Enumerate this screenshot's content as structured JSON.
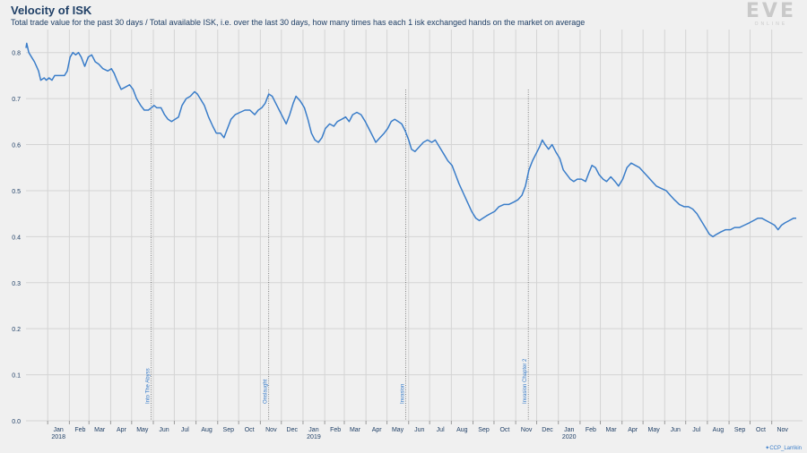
{
  "header": {
    "title": "Velocity of ISK",
    "subtitle": "Total trade value for the past 30 days / Total available ISK, i.e. over the last 30 days, how many times has each 1 isk exchanged hands on the market on average"
  },
  "logo": {
    "main": "EVE",
    "sub": "ONLINE"
  },
  "credit": "CCP_Larrikin",
  "colors": {
    "line": "#3a7dc9",
    "grid": "#d4d4d4",
    "text": "#1f3f66",
    "background": "#f0f0f0",
    "event": "#555555"
  },
  "chart_data": {
    "type": "line",
    "title": "Velocity of ISK",
    "xlabel": "",
    "ylabel": "",
    "ylim": [
      0,
      0.85
    ],
    "xlim": [
      "2017-12-01",
      "2020-12-15"
    ],
    "grid": true,
    "y_ticks": [
      "0.0",
      "0.1",
      "0.2",
      "0.3",
      "0.4",
      "0.5",
      "0.6",
      "0.7",
      "0.8"
    ],
    "x_ticks": [
      {
        "date": "2018-01-01",
        "label": "Jan",
        "year": "2018"
      },
      {
        "date": "2018-02-01",
        "label": "Feb"
      },
      {
        "date": "2018-03-01",
        "label": "Mar"
      },
      {
        "date": "2018-04-01",
        "label": "Apr"
      },
      {
        "date": "2018-05-01",
        "label": "May"
      },
      {
        "date": "2018-06-01",
        "label": "Jun"
      },
      {
        "date": "2018-07-01",
        "label": "Jul"
      },
      {
        "date": "2018-08-01",
        "label": "Aug"
      },
      {
        "date": "2018-09-01",
        "label": "Sep"
      },
      {
        "date": "2018-10-01",
        "label": "Oct"
      },
      {
        "date": "2018-11-01",
        "label": "Nov"
      },
      {
        "date": "2018-12-01",
        "label": "Dec"
      },
      {
        "date": "2019-01-01",
        "label": "Jan",
        "year": "2019"
      },
      {
        "date": "2019-02-01",
        "label": "Feb"
      },
      {
        "date": "2019-03-01",
        "label": "Mar"
      },
      {
        "date": "2019-04-01",
        "label": "Apr"
      },
      {
        "date": "2019-05-01",
        "label": "May"
      },
      {
        "date": "2019-06-01",
        "label": "Jun"
      },
      {
        "date": "2019-07-01",
        "label": "Jul"
      },
      {
        "date": "2019-08-01",
        "label": "Aug"
      },
      {
        "date": "2019-09-01",
        "label": "Sep"
      },
      {
        "date": "2019-10-01",
        "label": "Oct"
      },
      {
        "date": "2019-11-01",
        "label": "Nov"
      },
      {
        "date": "2019-12-01",
        "label": "Dec"
      },
      {
        "date": "2020-01-01",
        "label": "Jan",
        "year": "2020"
      },
      {
        "date": "2020-02-01",
        "label": "Feb"
      },
      {
        "date": "2020-03-01",
        "label": "Mar"
      },
      {
        "date": "2020-04-01",
        "label": "Apr"
      },
      {
        "date": "2020-05-01",
        "label": "May"
      },
      {
        "date": "2020-06-01",
        "label": "Jun"
      },
      {
        "date": "2020-07-01",
        "label": "Jul"
      },
      {
        "date": "2020-08-01",
        "label": "Aug"
      },
      {
        "date": "2020-09-01",
        "label": "Sep"
      },
      {
        "date": "2020-10-01",
        "label": "Oct"
      },
      {
        "date": "2020-11-01",
        "label": "Nov"
      }
    ],
    "events": [
      {
        "date": "2018-05-29",
        "label": "Into The Abyss"
      },
      {
        "date": "2018-11-13",
        "label": "Onslaught"
      },
      {
        "date": "2019-05-28",
        "label": "Invasion"
      },
      {
        "date": "2019-11-19",
        "label": "Invasion Chapter 2"
      }
    ],
    "series": [
      {
        "values": [
          [
            "2017-12-01",
            0.81
          ],
          [
            "2017-12-02",
            0.82
          ],
          [
            "2017-12-05",
            0.8
          ],
          [
            "2017-12-09",
            0.79
          ],
          [
            "2017-12-13",
            0.78
          ],
          [
            "2017-12-16",
            0.77
          ],
          [
            "2017-12-19",
            0.76
          ],
          [
            "2017-12-22",
            0.74
          ],
          [
            "2017-12-27",
            0.745
          ],
          [
            "2017-12-30",
            0.74
          ],
          [
            "2018-01-03",
            0.745
          ],
          [
            "2018-01-07",
            0.74
          ],
          [
            "2018-01-11",
            0.75
          ],
          [
            "2018-01-18",
            0.75
          ],
          [
            "2018-01-25",
            0.75
          ],
          [
            "2018-01-29",
            0.76
          ],
          [
            "2018-02-02",
            0.79
          ],
          [
            "2018-02-06",
            0.8
          ],
          [
            "2018-02-10",
            0.795
          ],
          [
            "2018-02-14",
            0.8
          ],
          [
            "2018-02-18",
            0.79
          ],
          [
            "2018-02-23",
            0.77
          ],
          [
            "2018-02-28",
            0.79
          ],
          [
            "2018-03-05",
            0.795
          ],
          [
            "2018-03-10",
            0.78
          ],
          [
            "2018-03-15",
            0.775
          ],
          [
            "2018-03-21",
            0.765
          ],
          [
            "2018-03-28",
            0.76
          ],
          [
            "2018-04-02",
            0.765
          ],
          [
            "2018-04-06",
            0.755
          ],
          [
            "2018-04-10",
            0.74
          ],
          [
            "2018-04-16",
            0.72
          ],
          [
            "2018-04-22",
            0.725
          ],
          [
            "2018-04-28",
            0.73
          ],
          [
            "2018-05-03",
            0.72
          ],
          [
            "2018-05-08",
            0.7
          ],
          [
            "2018-05-14",
            0.685
          ],
          [
            "2018-05-19",
            0.675
          ],
          [
            "2018-05-25",
            0.675
          ],
          [
            "2018-05-29",
            0.68
          ],
          [
            "2018-06-02",
            0.685
          ],
          [
            "2018-06-06",
            0.68
          ],
          [
            "2018-06-12",
            0.68
          ],
          [
            "2018-06-17",
            0.665
          ],
          [
            "2018-06-22",
            0.655
          ],
          [
            "2018-06-27",
            0.65
          ],
          [
            "2018-07-02",
            0.655
          ],
          [
            "2018-07-07",
            0.66
          ],
          [
            "2018-07-12",
            0.685
          ],
          [
            "2018-07-18",
            0.7
          ],
          [
            "2018-07-24",
            0.705
          ],
          [
            "2018-07-30",
            0.715
          ],
          [
            "2018-08-03",
            0.71
          ],
          [
            "2018-08-07",
            0.7
          ],
          [
            "2018-08-13",
            0.685
          ],
          [
            "2018-08-19",
            0.66
          ],
          [
            "2018-08-25",
            0.64
          ],
          [
            "2018-08-30",
            0.625
          ],
          [
            "2018-09-05",
            0.625
          ],
          [
            "2018-09-10",
            0.615
          ],
          [
            "2018-09-15",
            0.635
          ],
          [
            "2018-09-20",
            0.655
          ],
          [
            "2018-09-26",
            0.665
          ],
          [
            "2018-10-03",
            0.67
          ],
          [
            "2018-10-10",
            0.675
          ],
          [
            "2018-10-17",
            0.675
          ],
          [
            "2018-10-24",
            0.665
          ],
          [
            "2018-10-29",
            0.675
          ],
          [
            "2018-11-03",
            0.68
          ],
          [
            "2018-11-08",
            0.69
          ],
          [
            "2018-11-13",
            0.71
          ],
          [
            "2018-11-18",
            0.705
          ],
          [
            "2018-11-23",
            0.69
          ],
          [
            "2018-11-28",
            0.675
          ],
          [
            "2018-12-03",
            0.66
          ],
          [
            "2018-12-08",
            0.645
          ],
          [
            "2018-12-13",
            0.665
          ],
          [
            "2018-12-18",
            0.69
          ],
          [
            "2018-12-22",
            0.705
          ],
          [
            "2018-12-28",
            0.695
          ],
          [
            "2019-01-03",
            0.68
          ],
          [
            "2019-01-08",
            0.655
          ],
          [
            "2019-01-13",
            0.625
          ],
          [
            "2019-01-18",
            0.61
          ],
          [
            "2019-01-23",
            0.605
          ],
          [
            "2019-01-28",
            0.615
          ],
          [
            "2019-02-02",
            0.635
          ],
          [
            "2019-02-08",
            0.645
          ],
          [
            "2019-02-14",
            0.64
          ],
          [
            "2019-02-19",
            0.65
          ],
          [
            "2019-02-25",
            0.655
          ],
          [
            "2019-03-03",
            0.66
          ],
          [
            "2019-03-08",
            0.65
          ],
          [
            "2019-03-13",
            0.665
          ],
          [
            "2019-03-19",
            0.67
          ],
          [
            "2019-03-25",
            0.665
          ],
          [
            "2019-03-31",
            0.65
          ],
          [
            "2019-04-05",
            0.635
          ],
          [
            "2019-04-10",
            0.62
          ],
          [
            "2019-04-15",
            0.605
          ],
          [
            "2019-04-21",
            0.615
          ],
          [
            "2019-04-27",
            0.625
          ],
          [
            "2019-05-02",
            0.635
          ],
          [
            "2019-05-07",
            0.65
          ],
          [
            "2019-05-12",
            0.655
          ],
          [
            "2019-05-17",
            0.65
          ],
          [
            "2019-05-22",
            0.645
          ],
          [
            "2019-05-27",
            0.63
          ],
          [
            "2019-06-01",
            0.61
          ],
          [
            "2019-06-05",
            0.59
          ],
          [
            "2019-06-10",
            0.585
          ],
          [
            "2019-06-16",
            0.595
          ],
          [
            "2019-06-22",
            0.605
          ],
          [
            "2019-06-28",
            0.61
          ],
          [
            "2019-07-04",
            0.605
          ],
          [
            "2019-07-09",
            0.61
          ],
          [
            "2019-07-15",
            0.595
          ],
          [
            "2019-07-21",
            0.58
          ],
          [
            "2019-07-27",
            0.565
          ],
          [
            "2019-08-02",
            0.555
          ],
          [
            "2019-08-07",
            0.535
          ],
          [
            "2019-08-12",
            0.515
          ],
          [
            "2019-08-18",
            0.495
          ],
          [
            "2019-08-24",
            0.475
          ],
          [
            "2019-08-30",
            0.455
          ],
          [
            "2019-09-05",
            0.44
          ],
          [
            "2019-09-10",
            0.435
          ],
          [
            "2019-09-15",
            0.44
          ],
          [
            "2019-09-20",
            0.445
          ],
          [
            "2019-09-26",
            0.45
          ],
          [
            "2019-10-02",
            0.455
          ],
          [
            "2019-10-08",
            0.465
          ],
          [
            "2019-10-15",
            0.47
          ],
          [
            "2019-10-22",
            0.47
          ],
          [
            "2019-10-29",
            0.475
          ],
          [
            "2019-11-04",
            0.48
          ],
          [
            "2019-11-10",
            0.49
          ],
          [
            "2019-11-15",
            0.51
          ],
          [
            "2019-11-20",
            0.545
          ],
          [
            "2019-11-25",
            0.565
          ],
          [
            "2019-11-30",
            0.58
          ],
          [
            "2019-12-05",
            0.595
          ],
          [
            "2019-12-09",
            0.61
          ],
          [
            "2019-12-13",
            0.6
          ],
          [
            "2019-12-18",
            0.59
          ],
          [
            "2019-12-23",
            0.6
          ],
          [
            "2019-12-28",
            0.585
          ],
          [
            "2020-01-03",
            0.57
          ],
          [
            "2020-01-08",
            0.545
          ],
          [
            "2020-01-13",
            0.535
          ],
          [
            "2020-01-18",
            0.525
          ],
          [
            "2020-01-23",
            0.52
          ],
          [
            "2020-01-28",
            0.525
          ],
          [
            "2020-02-03",
            0.525
          ],
          [
            "2020-02-09",
            0.52
          ],
          [
            "2020-02-14",
            0.54
          ],
          [
            "2020-02-18",
            0.555
          ],
          [
            "2020-02-23",
            0.55
          ],
          [
            "2020-02-28",
            0.535
          ],
          [
            "2020-03-05",
            0.525
          ],
          [
            "2020-03-10",
            0.52
          ],
          [
            "2020-03-16",
            0.53
          ],
          [
            "2020-03-22",
            0.52
          ],
          [
            "2020-03-27",
            0.51
          ],
          [
            "2020-04-02",
            0.525
          ],
          [
            "2020-04-08",
            0.55
          ],
          [
            "2020-04-14",
            0.56
          ],
          [
            "2020-04-20",
            0.555
          ],
          [
            "2020-04-26",
            0.55
          ],
          [
            "2020-05-02",
            0.54
          ],
          [
            "2020-05-08",
            0.53
          ],
          [
            "2020-05-14",
            0.52
          ],
          [
            "2020-05-20",
            0.51
          ],
          [
            "2020-05-27",
            0.505
          ],
          [
            "2020-06-03",
            0.5
          ],
          [
            "2020-06-09",
            0.49
          ],
          [
            "2020-06-15",
            0.48
          ],
          [
            "2020-06-22",
            0.47
          ],
          [
            "2020-06-29",
            0.465
          ],
          [
            "2020-07-05",
            0.465
          ],
          [
            "2020-07-11",
            0.46
          ],
          [
            "2020-07-17",
            0.45
          ],
          [
            "2020-07-23",
            0.435
          ],
          [
            "2020-07-29",
            0.42
          ],
          [
            "2020-08-04",
            0.405
          ],
          [
            "2020-08-09",
            0.4
          ],
          [
            "2020-08-14",
            0.405
          ],
          [
            "2020-08-20",
            0.41
          ],
          [
            "2020-08-27",
            0.415
          ],
          [
            "2020-09-03",
            0.415
          ],
          [
            "2020-09-09",
            0.42
          ],
          [
            "2020-09-16",
            0.42
          ],
          [
            "2020-09-23",
            0.425
          ],
          [
            "2020-09-30",
            0.43
          ],
          [
            "2020-10-06",
            0.435
          ],
          [
            "2020-10-12",
            0.44
          ],
          [
            "2020-10-18",
            0.44
          ],
          [
            "2020-10-24",
            0.435
          ],
          [
            "2020-10-30",
            0.43
          ],
          [
            "2020-11-05",
            0.425
          ],
          [
            "2020-11-10",
            0.415
          ],
          [
            "2020-11-15",
            0.425
          ],
          [
            "2020-11-20",
            0.43
          ],
          [
            "2020-11-26",
            0.435
          ],
          [
            "2020-12-02",
            0.44
          ],
          [
            "2020-12-06",
            0.44
          ]
        ]
      }
    ]
  }
}
